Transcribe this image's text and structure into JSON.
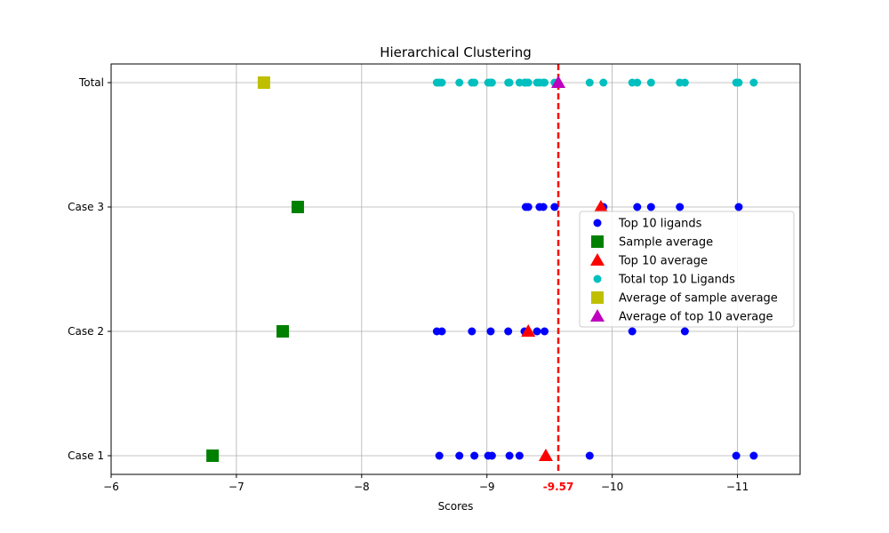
{
  "chart_data": {
    "type": "scatter",
    "title": "Hierarchical Clustering",
    "xlabel": "Scores",
    "ylabel": "",
    "xlim": [
      -6,
      -11.5
    ],
    "x_axis_inverted": true,
    "x_ticks": [
      -6,
      -7,
      -8,
      -9,
      -10,
      -11
    ],
    "x_tick_labels": [
      "−6",
      "−7",
      "−8",
      "−9",
      "−10",
      "−11"
    ],
    "categories": [
      "Case 1",
      "Case 2",
      "Case 3",
      "Total"
    ],
    "grid": true,
    "legend_position": "center-right",
    "reference_line": {
      "value": -9.57,
      "label": "-9.57",
      "color": "#ff0000",
      "style": "dashed"
    },
    "series": [
      {
        "name": "Top 10 ligands",
        "marker": "circle",
        "color": "#0000ff",
        "points": [
          {
            "x": -8.62,
            "y": "Case 1"
          },
          {
            "x": -8.78,
            "y": "Case 1"
          },
          {
            "x": -8.9,
            "y": "Case 1"
          },
          {
            "x": -9.01,
            "y": "Case 1"
          },
          {
            "x": -9.04,
            "y": "Case 1"
          },
          {
            "x": -9.18,
            "y": "Case 1"
          },
          {
            "x": -9.26,
            "y": "Case 1"
          },
          {
            "x": -9.82,
            "y": "Case 1"
          },
          {
            "x": -10.99,
            "y": "Case 1"
          },
          {
            "x": -11.13,
            "y": "Case 1"
          },
          {
            "x": -8.6,
            "y": "Case 2"
          },
          {
            "x": -8.64,
            "y": "Case 2"
          },
          {
            "x": -8.88,
            "y": "Case 2"
          },
          {
            "x": -9.03,
            "y": "Case 2"
          },
          {
            "x": -9.17,
            "y": "Case 2"
          },
          {
            "x": -9.3,
            "y": "Case 2"
          },
          {
            "x": -9.4,
            "y": "Case 2"
          },
          {
            "x": -9.46,
            "y": "Case 2"
          },
          {
            "x": -10.16,
            "y": "Case 2"
          },
          {
            "x": -10.58,
            "y": "Case 2"
          },
          {
            "x": -9.31,
            "y": "Case 3"
          },
          {
            "x": -9.33,
            "y": "Case 3"
          },
          {
            "x": -9.42,
            "y": "Case 3"
          },
          {
            "x": -9.45,
            "y": "Case 3"
          },
          {
            "x": -9.54,
            "y": "Case 3"
          },
          {
            "x": -9.93,
            "y": "Case 3"
          },
          {
            "x": -10.2,
            "y": "Case 3"
          },
          {
            "x": -10.31,
            "y": "Case 3"
          },
          {
            "x": -10.54,
            "y": "Case 3"
          },
          {
            "x": -11.01,
            "y": "Case 3"
          }
        ]
      },
      {
        "name": "Sample average",
        "marker": "square",
        "color": "#008000",
        "points": [
          {
            "x": -6.81,
            "y": "Case 1"
          },
          {
            "x": -7.37,
            "y": "Case 2"
          },
          {
            "x": -7.49,
            "y": "Case 3"
          }
        ]
      },
      {
        "name": "Top 10 average",
        "marker": "triangle",
        "color": "#ff0000",
        "points": [
          {
            "x": -9.47,
            "y": "Case 1"
          },
          {
            "x": -9.33,
            "y": "Case 2"
          },
          {
            "x": -9.91,
            "y": "Case 3"
          }
        ]
      },
      {
        "name": "Total top 10 Ligands",
        "marker": "circle",
        "color": "#00bfbf",
        "points": [
          {
            "x": -8.6,
            "y": "Total"
          },
          {
            "x": -8.62,
            "y": "Total"
          },
          {
            "x": -8.64,
            "y": "Total"
          },
          {
            "x": -8.78,
            "y": "Total"
          },
          {
            "x": -8.88,
            "y": "Total"
          },
          {
            "x": -8.9,
            "y": "Total"
          },
          {
            "x": -9.01,
            "y": "Total"
          },
          {
            "x": -9.03,
            "y": "Total"
          },
          {
            "x": -9.04,
            "y": "Total"
          },
          {
            "x": -9.17,
            "y": "Total"
          },
          {
            "x": -9.18,
            "y": "Total"
          },
          {
            "x": -9.26,
            "y": "Total"
          },
          {
            "x": -9.3,
            "y": "Total"
          },
          {
            "x": -9.31,
            "y": "Total"
          },
          {
            "x": -9.33,
            "y": "Total"
          },
          {
            "x": -9.4,
            "y": "Total"
          },
          {
            "x": -9.42,
            "y": "Total"
          },
          {
            "x": -9.45,
            "y": "Total"
          },
          {
            "x": -9.46,
            "y": "Total"
          },
          {
            "x": -9.54,
            "y": "Total"
          },
          {
            "x": -9.82,
            "y": "Total"
          },
          {
            "x": -9.93,
            "y": "Total"
          },
          {
            "x": -10.16,
            "y": "Total"
          },
          {
            "x": -10.2,
            "y": "Total"
          },
          {
            "x": -10.31,
            "y": "Total"
          },
          {
            "x": -10.54,
            "y": "Total"
          },
          {
            "x": -10.58,
            "y": "Total"
          },
          {
            "x": -10.99,
            "y": "Total"
          },
          {
            "x": -11.01,
            "y": "Total"
          },
          {
            "x": -11.13,
            "y": "Total"
          }
        ]
      },
      {
        "name": "Average of sample average",
        "marker": "square",
        "color": "#bfbf00",
        "points": [
          {
            "x": -7.22,
            "y": "Total"
          }
        ]
      },
      {
        "name": "Average of top 10 average",
        "marker": "triangle",
        "color": "#bf00bf",
        "points": [
          {
            "x": -9.57,
            "y": "Total"
          }
        ]
      }
    ]
  }
}
